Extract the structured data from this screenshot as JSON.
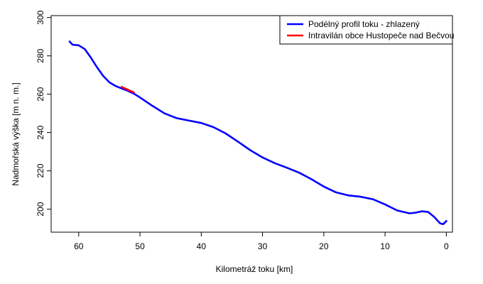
{
  "chart_data": {
    "type": "line",
    "title": "",
    "xlabel": "Kilometráž toku [km]",
    "ylabel": "Nadmořská výška [m n. m.]",
    "xlim": [
      64.5,
      -1.0
    ],
    "ylim": [
      188,
      301
    ],
    "x_reversed": true,
    "xticks": [
      60,
      50,
      40,
      30,
      20,
      10,
      0
    ],
    "yticks": [
      200,
      220,
      240,
      260,
      280,
      300
    ],
    "legend_position": "top-right",
    "grid": false,
    "series": [
      {
        "name": "Podélný profil toku  - zhlazený",
        "color": "#0000ff",
        "x": [
          61.5,
          61.0,
          60.0,
          59.0,
          58.0,
          57.0,
          56.0,
          55.0,
          54.0,
          53.0,
          52.0,
          51.0,
          50.0,
          48.0,
          46.0,
          44.0,
          42.0,
          40.0,
          38.0,
          36.0,
          34.0,
          32.0,
          30.0,
          28.0,
          26.0,
          24.0,
          22.0,
          20.0,
          18.0,
          16.0,
          14.0,
          12.0,
          10.0,
          8.0,
          6.0,
          5.0,
          4.0,
          3.0,
          2.0,
          1.0,
          0.5,
          0.0
        ],
        "y": [
          287.5,
          285.8,
          285.5,
          283.5,
          279.0,
          274.0,
          269.5,
          266.2,
          264.3,
          263.0,
          261.8,
          260.3,
          258.3,
          254.0,
          250.0,
          247.5,
          246.2,
          245.0,
          242.8,
          239.5,
          235.2,
          230.8,
          227.0,
          224.0,
          221.6,
          219.0,
          215.6,
          211.8,
          208.8,
          207.2,
          206.5,
          205.2,
          202.5,
          199.3,
          197.8,
          198.2,
          198.9,
          198.6,
          196.0,
          192.6,
          192.2,
          193.8
        ]
      },
      {
        "name": "Intravilán obce Hustopeče nad Bečvou",
        "color": "#ff0000",
        "x": [
          53.0,
          52.0,
          51.0
        ],
        "y": [
          263.8,
          262.4,
          260.9
        ]
      }
    ]
  }
}
